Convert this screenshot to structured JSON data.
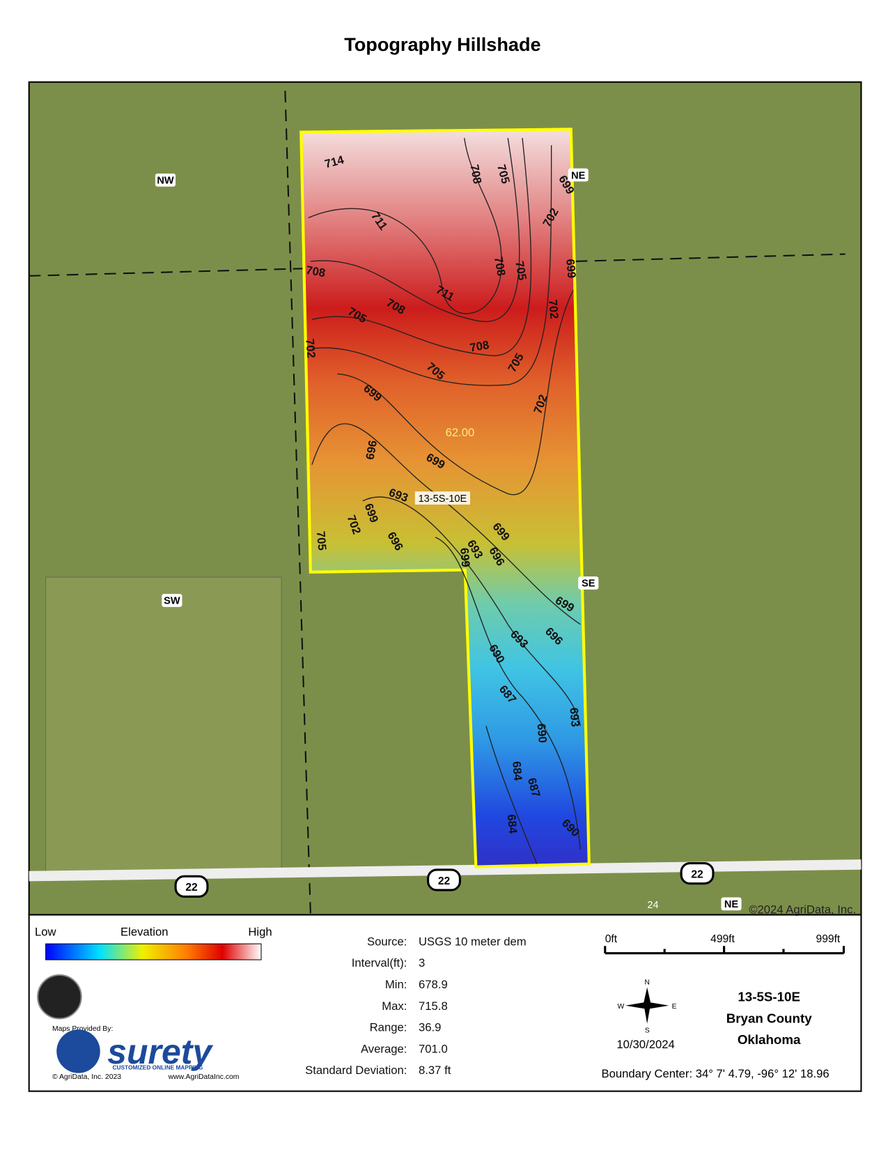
{
  "header": {
    "title": "Topography Hillshade"
  },
  "map": {
    "corner_labels": [
      "NW",
      "NE",
      "SE",
      "SW",
      "NE"
    ],
    "field_label": "13-5S-10E",
    "acreage": "62.00",
    "contour_labels": [
      714,
      708,
      705,
      699,
      711,
      702,
      708,
      708,
      705,
      699,
      711,
      708,
      705,
      702,
      708,
      702,
      705,
      705,
      699,
      702,
      699,
      696,
      693,
      699,
      702,
      696,
      705,
      699,
      693,
      696,
      699,
      699,
      696,
      693,
      690,
      687,
      693,
      690,
      684,
      687,
      684,
      690
    ],
    "road_labels": [
      "22",
      "22",
      "22",
      "24"
    ],
    "copyright": "©2024 AgriData, Inc."
  },
  "legend": {
    "low": "Low",
    "title": "Elevation",
    "high": "High",
    "provided_by": "Maps Provided By:",
    "brand": "surety",
    "brand_tagline": "CUSTOMIZED ONLINE MAPPING",
    "brand_copyright": "© AgriData, Inc. 2023",
    "brand_url": "www.AgriDataInc.com"
  },
  "stats": [
    {
      "label": "Source:",
      "value": "USGS 10 meter dem"
    },
    {
      "label": "Interval(ft):",
      "value": "3"
    },
    {
      "label": "Min:",
      "value": "678.9"
    },
    {
      "label": "Max:",
      "value": "715.8"
    },
    {
      "label": "Range:",
      "value": "36.9"
    },
    {
      "label": "Average:",
      "value": "701.0"
    },
    {
      "label": "Standard Deviation:",
      "value": "8.37 ft"
    }
  ],
  "scale": {
    "ticks": [
      "0ft",
      "499ft",
      "999ft"
    ]
  },
  "compass": {
    "n": "N",
    "e": "E",
    "s": "S",
    "w": "W"
  },
  "date": "10/30/2024",
  "location": {
    "section": "13-5S-10E",
    "county": "Bryan County",
    "state": "Oklahoma",
    "boundary_center": "Boundary Center: 34° 7' 4.79,  -96° 12' 18.96"
  }
}
